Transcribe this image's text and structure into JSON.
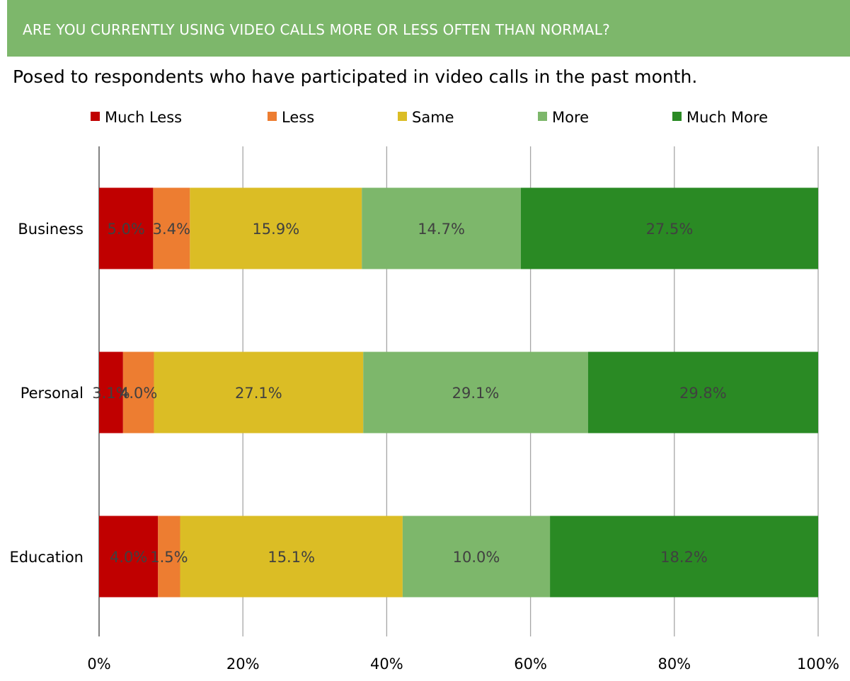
{
  "header": {
    "title": "ARE YOU CURRENTLY USING VIDEO CALLS MORE OR LESS OFTEN THAN NORMAL?",
    "subtitle": "Posed to respondents who have participated in video calls in the past month.",
    "banner_color": "#7db76b"
  },
  "chart_data": {
    "type": "bar",
    "orientation": "horizontal",
    "stacked": "percent",
    "categories": [
      "Business",
      "Personal",
      "Education"
    ],
    "series": [
      {
        "name": "Much Less",
        "color": "#c00000",
        "values": [
          5.0,
          3.1,
          4.0
        ],
        "labels": [
          "5.0%",
          "3.1%",
          "4.0%"
        ]
      },
      {
        "name": "Less",
        "color": "#ed7d31",
        "values": [
          3.4,
          4.0,
          1.5
        ],
        "labels": [
          "3.4%",
          "4.0%",
          "1.5%"
        ]
      },
      {
        "name": "Same",
        "color": "#dbbd25",
        "values": [
          15.9,
          27.1,
          15.1
        ],
        "labels": [
          "15.9%",
          "27.1%",
          "15.1%"
        ]
      },
      {
        "name": "More",
        "color": "#7db76b",
        "values": [
          14.7,
          29.1,
          10.0
        ],
        "labels": [
          "14.7%",
          "29.1%",
          "10.0%"
        ]
      },
      {
        "name": "Much More",
        "color": "#2a8a24",
        "values": [
          27.5,
          29.8,
          18.2
        ],
        "labels": [
          "27.5%",
          "29.8%",
          "18.2%"
        ]
      }
    ],
    "xlim": [
      0,
      100
    ],
    "xticks": [
      "0%",
      "20%",
      "40%",
      "60%",
      "80%",
      "100%"
    ],
    "grid": true,
    "legend": "top"
  }
}
